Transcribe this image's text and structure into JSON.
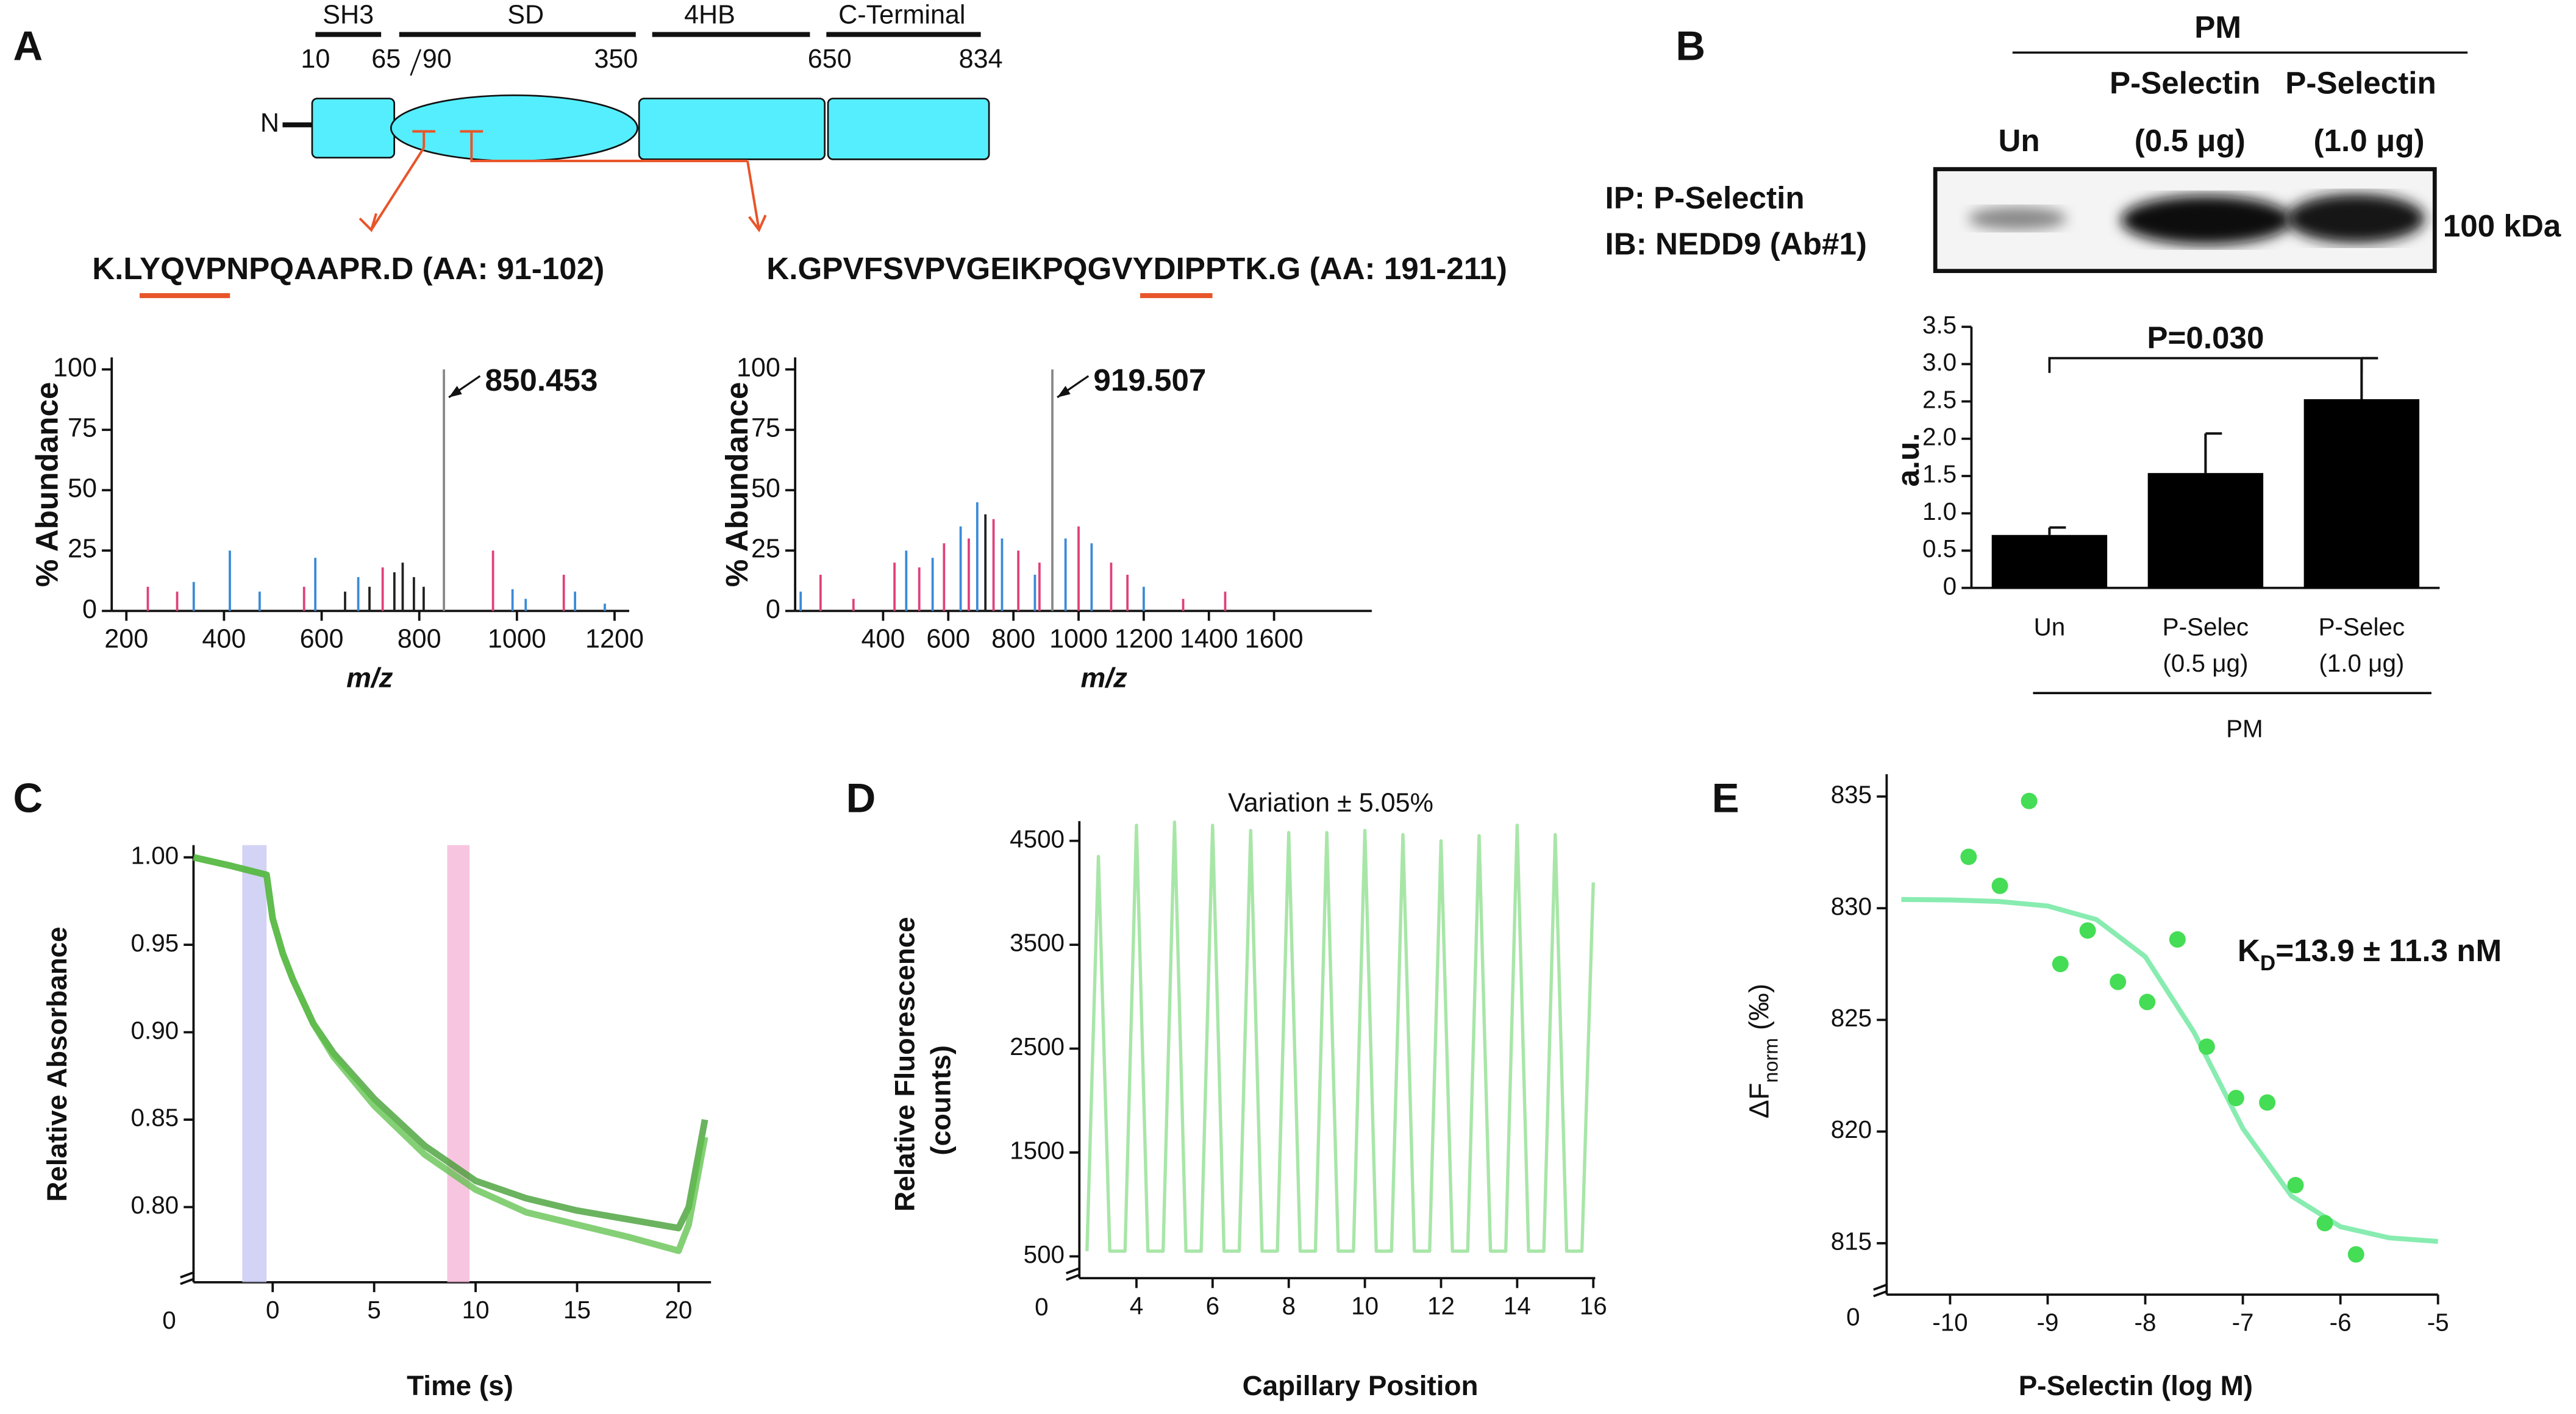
{
  "panel_labels": [
    "A",
    "B",
    "C",
    "D",
    "E"
  ],
  "domain_diagram": {
    "terminus": "N",
    "regions": [
      "SH3",
      "SD",
      "4HB",
      "C-Terminal"
    ],
    "positions": [
      "10",
      "65",
      "90",
      "350",
      "650",
      "834"
    ]
  },
  "blot": {
    "group": "PM",
    "treatments": [
      "P-Selectin",
      "P-Selectin"
    ],
    "lanes": [
      "Un",
      "(0.5 μg)",
      "(1.0 μg)"
    ],
    "ip": "IP: P-Selectin",
    "ib": "IB: NEDD9 (Ab#1)",
    "marker": "100 kDa"
  },
  "chart_data": [
    {
      "type": "stem",
      "title": "K.LYQVPNPQAAPR.D (AA: 91-102)",
      "xlabel": "m/z",
      "ylabel": "% Abundance",
      "annotation": "850.453",
      "x": [
        244,
        304,
        338,
        412,
        473,
        564,
        587,
        648,
        675,
        698,
        725,
        749,
        766,
        789,
        809,
        850.453,
        951,
        991,
        1018,
        1096,
        1119,
        1180
      ],
      "values": [
        10,
        8,
        12,
        25,
        8,
        10,
        22,
        8,
        14,
        10,
        18,
        16,
        20,
        14,
        10,
        100,
        25,
        9,
        5,
        15,
        8,
        3
      ],
      "colors": [
        "#e0407a",
        "#e0407a",
        "#3a8ad8",
        "#3a8ad8",
        "#3a8ad8",
        "#e0407a",
        "#3a8ad8",
        "#222222",
        "#3a8ad8",
        "#222222",
        "#e0407a",
        "#222222",
        "#222222",
        "#222222",
        "#222222",
        "#888888",
        "#e0407a",
        "#3a8ad8",
        "#3a8ad8",
        "#e0407a",
        "#3a8ad8",
        "#3a8ad8"
      ],
      "xlim": [
        170,
        1230
      ],
      "ylim": [
        0,
        105
      ],
      "xticks": [
        200,
        400,
        600,
        800,
        1000,
        1200
      ],
      "yticks": [
        0,
        25,
        50,
        75,
        100
      ]
    },
    {
      "type": "stem",
      "title": "K.GPVFSVPVGEIKPQGVYDIPPTK.G (AA: 191-211)",
      "xlabel": "m/z",
      "ylabel": "% Abundance",
      "annotation": "919.507",
      "x": [
        147,
        208,
        309,
        435,
        471,
        511,
        552,
        587,
        638,
        663,
        689,
        714,
        739,
        765,
        815,
        866,
        880,
        919.507,
        960,
        1000,
        1040,
        1100,
        1150,
        1200,
        1321,
        1450
      ],
      "values": [
        8,
        15,
        5,
        20,
        25,
        18,
        22,
        28,
        35,
        30,
        45,
        40,
        38,
        30,
        25,
        15,
        20,
        100,
        30,
        35,
        28,
        20,
        15,
        10,
        5,
        8
      ],
      "colors": [
        "#3a8ad8",
        "#e0407a",
        "#e0407a",
        "#e0407a",
        "#3a8ad8",
        "#e0407a",
        "#3a8ad8",
        "#e0407a",
        "#3a8ad8",
        "#e0407a",
        "#3a8ad8",
        "#222222",
        "#e0407a",
        "#3a8ad8",
        "#e0407a",
        "#3a8ad8",
        "#e0407a",
        "#888888",
        "#3a8ad8",
        "#e0407a",
        "#3a8ad8",
        "#e0407a",
        "#e0407a",
        "#3a8ad8",
        "#e0407a",
        "#e0407a"
      ],
      "xlim": [
        130,
        1900
      ],
      "ylim": [
        0,
        105
      ],
      "xticks": [
        400,
        600,
        800,
        1000,
        1200,
        1400,
        1600
      ],
      "yticks": [
        0,
        25,
        50,
        75,
        100
      ]
    },
    {
      "type": "bar",
      "ylabel": "a.u.",
      "annotation": "P=0.030",
      "group_label": "PM",
      "categories": [
        [
          "Un"
        ],
        [
          "P-Selec",
          "(0.5 μg)"
        ],
        [
          "P-Selec",
          "(1.0 μg)"
        ]
      ],
      "values": [
        0.71,
        1.54,
        2.53
      ],
      "errors": [
        0.1,
        0.53,
        0.55
      ],
      "color": "#000000",
      "ylim": [
        0,
        3.5
      ],
      "yticks": [
        0,
        0.5,
        {
          "value": 1,
          "label": "1.0"
        },
        1.5,
        {
          "value": 2,
          "label": "2.0"
        },
        2.5,
        {
          "value": 3,
          "label": "3.0"
        },
        3.5
      ]
    },
    {
      "type": "line",
      "xlabel": "Time (s)",
      "ylabel": "Relative Absorbance",
      "origin_label": "0",
      "x": [
        -3.9,
        -2,
        -0.3,
        0,
        0.5,
        1,
        2,
        3,
        5,
        7.5,
        10,
        12.5,
        15,
        17.5,
        20,
        20.5,
        21.3
      ],
      "series": [
        {
          "color": "#3a9a2a",
          "values": [
            1.0,
            0.995,
            0.99,
            0.965,
            0.945,
            0.93,
            0.905,
            0.888,
            0.862,
            0.835,
            0.815,
            0.805,
            0.798,
            0.793,
            0.788,
            0.8,
            0.85
          ]
        },
        {
          "color": "#5cc048",
          "values": [
            1.0,
            0.995,
            0.99,
            0.965,
            0.945,
            0.93,
            0.905,
            0.886,
            0.858,
            0.83,
            0.81,
            0.797,
            0.79,
            0.783,
            0.775,
            0.79,
            0.84
          ]
        }
      ],
      "shaded_regions": [
        {
          "x": [
            -1.5,
            -0.3
          ],
          "color": "#c8c8f2"
        },
        {
          "x": [
            8.6,
            9.7
          ],
          "color": "#f6b6d8"
        }
      ],
      "xlim": [
        -3.9,
        21.6
      ],
      "ylim": [
        0.757,
        1.007
      ],
      "xticks": [
        0,
        5,
        10,
        15,
        20
      ],
      "yticks": [
        {
          "value": 0.8,
          "label": "0.80"
        },
        0.85,
        {
          "value": 0.9,
          "label": "0.90"
        },
        0.95,
        {
          "value": 1,
          "label": "1.00"
        }
      ]
    },
    {
      "type": "line",
      "title": "Variation ± 5.05%",
      "xlabel": "Capillary Position",
      "ylabel": [
        "Relative Fluorescence",
        "(counts)"
      ],
      "origin_label": "0",
      "x": [
        2.7,
        3,
        3.3,
        3.7,
        4,
        4.3,
        4.7,
        5,
        5.3,
        5.7,
        6,
        6.3,
        6.7,
        7,
        7.3,
        7.7,
        8,
        8.3,
        8.7,
        9,
        9.3,
        9.7,
        10,
        10.3,
        10.7,
        11,
        11.3,
        11.7,
        12,
        12.3,
        12.7,
        13,
        13.3,
        13.7,
        14,
        14.3,
        14.7,
        15,
        15.3,
        15.7,
        16
      ],
      "series": [
        {
          "color": "#9ee39e",
          "values": [
            550,
            4350,
            550,
            550,
            4650,
            550,
            550,
            4680,
            550,
            550,
            4650,
            550,
            550,
            4600,
            550,
            550,
            4580,
            550,
            550,
            4580,
            550,
            550,
            4600,
            550,
            550,
            4560,
            550,
            550,
            4500,
            550,
            550,
            4550,
            550,
            550,
            4650,
            550,
            550,
            4560,
            550,
            550,
            4100
          ]
        }
      ],
      "xlim": [
        2.5,
        16.05
      ],
      "ylim": [
        290,
        4690
      ],
      "xticks": [
        4,
        6,
        8,
        10,
        12,
        14,
        16
      ],
      "yticks": [
        500,
        1500,
        2500,
        3500,
        4500
      ]
    },
    {
      "type": "scatter",
      "xlabel": "P-Selectin (log M)",
      "ylabel": {
        "main": "ΔF",
        "sub": "norm",
        "tail": " (‰)"
      },
      "origin_label": "0",
      "annotation": {
        "main": "K",
        "sub": "D",
        "tail": "=13.9 ± 11.3 nM"
      },
      "x": [
        -9.81,
        -9.49,
        -9.19,
        -8.87,
        -8.59,
        -8.28,
        -7.98,
        -7.67,
        -7.37,
        -7.07,
        -6.75,
        -6.46,
        -6.16,
        -5.84
      ],
      "values": [
        832.3,
        831.0,
        834.8,
        827.5,
        829.0,
        826.7,
        825.8,
        828.6,
        823.8,
        821.5,
        821.3,
        817.6,
        815.9,
        814.5
      ],
      "color": "#44dd55",
      "fit_x": [
        -10.5,
        -10,
        -9.5,
        -9,
        -8.5,
        -8,
        -7.5,
        -7,
        -6.5,
        -6,
        -5.5,
        -5
      ],
      "fit_values": [
        830.39,
        830.37,
        830.3,
        830.1,
        829.49,
        827.83,
        824.44,
        820.14,
        817.11,
        815.74,
        815.24,
        815.08
      ],
      "fit_color": "#88ecb0",
      "xlim": [
        -10.65,
        -5
      ],
      "ylim": [
        812.7,
        836
      ],
      "xticks": [
        -10,
        -9,
        -8,
        -7,
        -6,
        -5
      ],
      "yticks": [
        815,
        820,
        825,
        830,
        835
      ]
    }
  ]
}
